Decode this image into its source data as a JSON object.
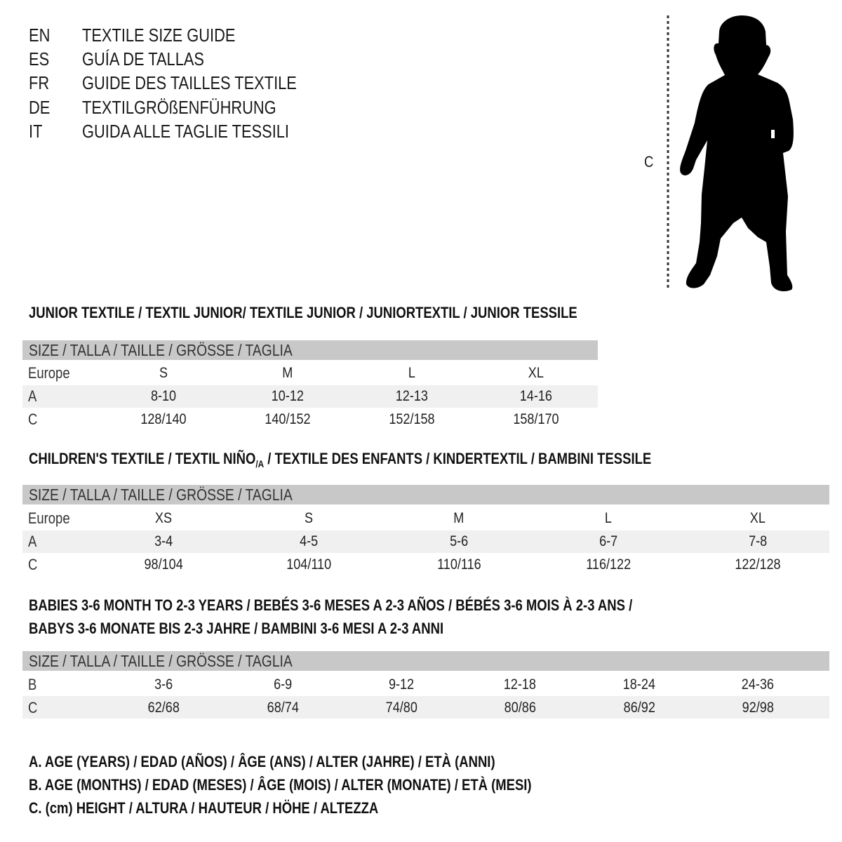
{
  "languages": [
    {
      "code": "EN",
      "text": "TEXTILE SIZE GUIDE"
    },
    {
      "code": "ES",
      "text": "GUÍA DE TALLAS"
    },
    {
      "code": "FR",
      "text": "GUIDE DES TAILLES TEXTILE"
    },
    {
      "code": "DE",
      "text": "TEXTILGRÖßENFÜHRUNG"
    },
    {
      "code": "IT",
      "text": "GUIDA ALLE TAGLIE TESSILI"
    }
  ],
  "figure": {
    "measure_label": "C",
    "icon": "child-silhouette"
  },
  "junior": {
    "title": "JUNIOR TEXTILE / TEXTIL JUNIOR/ TEXTILE JUNIOR / JUNIORTEXTIL / JUNIOR TESSILE",
    "header": "SIZE / TALLA / TAILLE / GRÖSSE / TAGLIA",
    "rows": [
      {
        "label": "Europe",
        "values": [
          "S",
          "M",
          "L",
          "XL"
        ]
      },
      {
        "label": "A",
        "values": [
          "8-10",
          "10-12",
          "12-13",
          "14-16"
        ]
      },
      {
        "label": "C",
        "values": [
          "128/140",
          "140/152",
          "152/158",
          "158/170"
        ]
      }
    ]
  },
  "children": {
    "title_a": "CHILDREN'S TEXTILE / TEXTIL NIÑO",
    "title_sub": "/A",
    "title_b": " / TEXTILE DES ENFANTS / KINDERTEXTIL / BAMBINI TESSILE",
    "header": "SIZE / TALLA / TAILLE / GRÖSSE / TAGLIA",
    "rows": [
      {
        "label": "Europe",
        "values": [
          "XS",
          "S",
          "M",
          "L",
          "XL"
        ]
      },
      {
        "label": "A",
        "values": [
          "3-4",
          "4-5",
          "5-6",
          "6-7",
          "7-8"
        ]
      },
      {
        "label": "C",
        "values": [
          "98/104",
          "104/110",
          "110/116",
          "116/122",
          "122/128"
        ]
      }
    ]
  },
  "babies": {
    "title_line1": "BABIES 3-6 MONTH TO 2-3 YEARS / BEBÉS 3-6 MESES A 2-3 AÑOS / BÉBÉS 3-6 MOIS À 2-3 ANS /",
    "title_line2": "BABYS 3-6 MONATE BIS 2-3 JAHRE / BAMBINI 3-6 MESI A 2-3 ANNI",
    "header": "SIZE / TALLA / TAILLE / GRÖSSE / TAGLIA",
    "rows": [
      {
        "label": "B",
        "values": [
          "3-6",
          "6-9",
          "9-12",
          "12-18",
          "18-24",
          "24-36"
        ]
      },
      {
        "label": "C",
        "values": [
          "62/68",
          "68/74",
          "74/80",
          "80/86",
          "86/92",
          "92/98"
        ]
      }
    ]
  },
  "legend": [
    "A. AGE (YEARS) / EDAD (AÑOS) / ÂGE (ANS) / ALTER (JAHRE) / ETÀ (ANNI)",
    "B. AGE (MONTHS) / EDAD (MESES) / ÂGE (MOIS) / ALTER (MONATE) / ETÀ (MESI)",
    "C. (cm) HEIGHT / ALTURA / HAUTEUR / HÖHE / ALTEZZA"
  ],
  "colors": {
    "header_bar": "#c8c8c8",
    "shaded_row": "#f0f0f0",
    "text": "#1a1a1a"
  }
}
